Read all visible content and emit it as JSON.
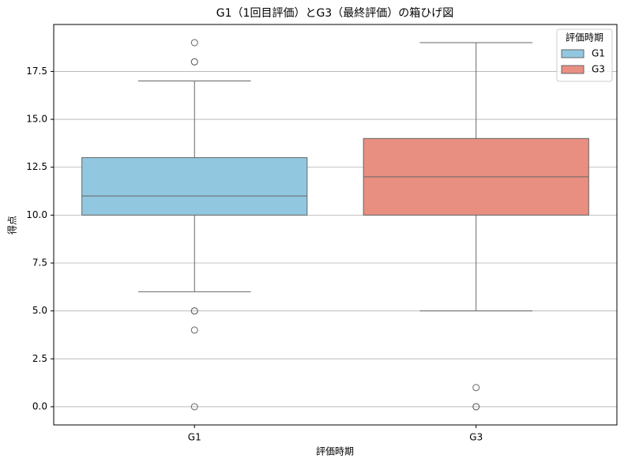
{
  "chart_data": {
    "type": "box",
    "title": "G1（1回目評価）とG3（最終評価）の箱ひげ図",
    "xlabel": "評価時期",
    "ylabel": "得点",
    "categories": [
      "G1",
      "G3"
    ],
    "series": [
      {
        "name": "G1",
        "color": "#92c8df",
        "min": 6,
        "q1": 10,
        "median": 11,
        "q3": 13,
        "max": 17,
        "outliers": [
          19,
          18,
          18,
          5,
          5,
          4,
          0
        ]
      },
      {
        "name": "G3",
        "color": "#e88f81",
        "min": 5,
        "q1": 10,
        "median": 12,
        "q3": 14,
        "max": 19,
        "outliers": [
          1,
          0,
          0
        ]
      }
    ],
    "legend_title": "評価時期",
    "legend": "upper right",
    "ylim": [
      -0.95,
      19.95
    ],
    "yticks": [
      {
        "value": 0,
        "label": "0.0"
      },
      2.5,
      {
        "value": 5,
        "label": "5.0"
      },
      7.5,
      {
        "value": 10,
        "label": "10.0"
      },
      12.5,
      {
        "value": 15,
        "label": "15.0"
      },
      17.5
    ],
    "grid": true
  }
}
